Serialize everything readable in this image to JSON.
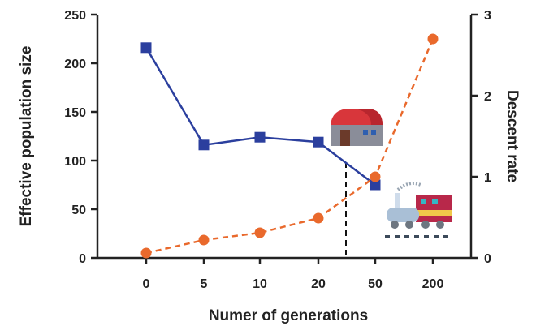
{
  "chart_data": {
    "type": "line",
    "categories": [
      "0",
      "5",
      "10",
      "20",
      "50",
      "200"
    ],
    "xlabel": "Numer of generations",
    "ylabel": "Effective population size",
    "y2label": "Descent rate",
    "ylim": [
      0,
      250
    ],
    "y2lim": [
      0,
      3
    ],
    "yticks": [
      "0",
      "50",
      "100",
      "150",
      "200",
      "250"
    ],
    "y2ticks": [
      "0",
      "1",
      "2",
      "3"
    ],
    "grid": false,
    "series": [
      {
        "axis": "left",
        "color": "#2b3f9e",
        "marker": "square",
        "line": "solid",
        "values": [
          216,
          116,
          124,
          119,
          75,
          null
        ]
      },
      {
        "axis": "right",
        "color": "#e9692c",
        "marker": "circle",
        "line": "dashed",
        "values": [
          0.06,
          0.22,
          0.31,
          0.49,
          1.0,
          2.7
        ]
      }
    ],
    "annotations": {
      "dashed_vertical_line_between": [
        "20",
        "50"
      ],
      "icons": [
        "barn-icon",
        "locomotive-icon"
      ]
    }
  }
}
